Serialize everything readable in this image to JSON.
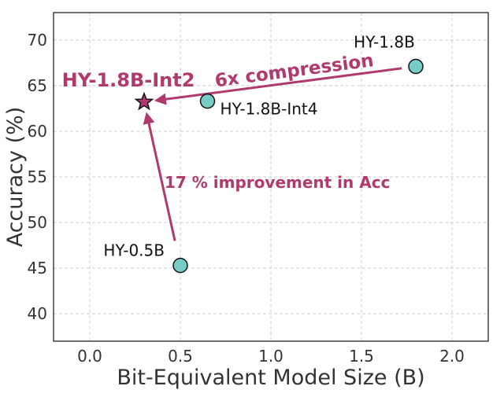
{
  "chart_data": {
    "type": "scatter",
    "xlabel": "Bit-Equivalent Model Size (B)",
    "ylabel": "Accuracy (%)",
    "xlim": [
      -0.2,
      2.2
    ],
    "ylim": [
      37,
      73
    ],
    "xticks": [
      0.0,
      0.5,
      1.0,
      1.5,
      2.0
    ],
    "xtick_labels": [
      "0.0",
      "0.5",
      "1.0",
      "1.5",
      "2.0"
    ],
    "yticks": [
      40,
      45,
      50,
      55,
      60,
      65,
      70
    ],
    "ytick_labels": [
      "40",
      "45",
      "50",
      "55",
      "60",
      "65",
      "70"
    ],
    "grid": true,
    "points": [
      {
        "label": "HY-1.8B",
        "x": 1.8,
        "y": 67.1,
        "marker": "circle",
        "color": "#76cdc6"
      },
      {
        "label": "HY-1.8B-Int4",
        "x": 0.65,
        "y": 63.3,
        "marker": "circle",
        "color": "#76cdc6"
      },
      {
        "label": "HY-0.5B",
        "x": 0.5,
        "y": 45.3,
        "marker": "circle",
        "color": "#76cdc6"
      },
      {
        "label": "HY-1.8B-Int2",
        "x": 0.3,
        "y": 63.2,
        "marker": "star",
        "color": "#b03a6e"
      }
    ],
    "annotations": [
      {
        "text": "6x compression",
        "from": "HY-1.8B",
        "to": "HY-1.8B-Int2",
        "color": "#b03a6e"
      },
      {
        "text": "17 % improvement in Acc",
        "from": "HY-0.5B",
        "to": "HY-1.8B-Int2",
        "color": "#b03a6e"
      }
    ]
  }
}
